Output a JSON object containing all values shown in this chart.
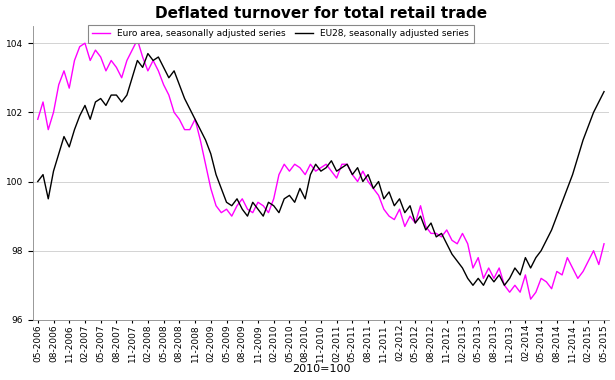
{
  "title": "Deflated turnover for total retail trade",
  "xlabel": "2010=100",
  "ylim": [
    96,
    104.5
  ],
  "yticks": [
    96,
    98,
    100,
    102,
    104
  ],
  "legend_labels": [
    "Euro area, seasonally adjusted series",
    "EU28, seasonally adjusted series"
  ],
  "legend_colors": [
    "#ff00ff",
    "#000000"
  ],
  "background_color": "#ffffff",
  "title_fontsize": 11,
  "tick_fontsize": 6.5,
  "x_labels": [
    "05-2006",
    "08-2006",
    "11-2006",
    "02-2007",
    "05-2007",
    "08-2007",
    "11-2007",
    "02-2008",
    "05-2008",
    "08-2008",
    "11-2008",
    "02-2009",
    "05-2009",
    "08-2009",
    "11-2009",
    "02-2010",
    "05-2010",
    "08-2010",
    "11-2010",
    "02-2011",
    "05-2011",
    "08-2011",
    "11-2011",
    "02-2012",
    "05-2012",
    "08-2012",
    "11-2012",
    "02-2013",
    "05-2013",
    "08-2013",
    "11-2013",
    "02-2014",
    "05-2014",
    "08-2014",
    "11-2014",
    "02-2015",
    "05-2015"
  ],
  "euro_area": [
    101.8,
    102.3,
    101.5,
    102.0,
    102.8,
    103.2,
    102.7,
    103.5,
    103.9,
    104.0,
    103.5,
    103.8,
    103.6,
    103.2,
    103.5,
    103.3,
    103.0,
    103.5,
    103.8,
    104.1,
    103.6,
    103.2,
    103.5,
    103.2,
    102.8,
    102.5,
    102.0,
    101.8,
    101.5,
    101.5,
    101.8,
    101.2,
    100.5,
    99.8,
    99.3,
    99.1,
    99.2,
    99.0,
    99.3,
    99.5,
    99.2,
    99.1,
    99.4,
    99.3,
    99.1,
    99.5,
    100.2,
    100.5,
    100.3,
    100.5,
    100.4,
    100.2,
    100.5,
    100.3,
    100.4,
    100.5,
    100.3,
    100.1,
    100.5,
    100.5,
    100.2,
    100.0,
    100.3,
    100.0,
    99.8,
    99.6,
    99.2,
    99.0,
    98.9,
    99.2,
    98.7,
    99.0,
    98.8,
    99.3,
    98.7,
    98.5,
    98.5,
    98.4,
    98.6,
    98.3,
    98.2,
    98.5,
    98.2,
    97.5,
    97.8,
    97.2,
    97.5,
    97.2,
    97.5,
    97.0,
    96.8,
    97.0,
    96.8,
    97.3,
    96.6,
    96.8,
    97.2,
    97.1,
    96.9,
    97.4,
    97.3,
    97.8,
    97.5,
    97.2,
    97.4,
    97.7,
    98.0,
    97.6,
    98.2
  ],
  "eu28": [
    100.0,
    100.2,
    99.5,
    100.3,
    100.8,
    101.3,
    101.0,
    101.5,
    101.9,
    102.2,
    101.8,
    102.3,
    102.4,
    102.2,
    102.5,
    102.5,
    102.3,
    102.5,
    103.0,
    103.5,
    103.3,
    103.7,
    103.5,
    103.6,
    103.3,
    103.0,
    103.2,
    102.8,
    102.4,
    102.1,
    101.8,
    101.5,
    101.2,
    100.8,
    100.2,
    99.8,
    99.4,
    99.3,
    99.5,
    99.2,
    99.0,
    99.4,
    99.2,
    99.0,
    99.4,
    99.3,
    99.1,
    99.5,
    99.6,
    99.4,
    99.8,
    99.5,
    100.2,
    100.5,
    100.3,
    100.4,
    100.6,
    100.3,
    100.4,
    100.5,
    100.2,
    100.4,
    100.0,
    100.2,
    99.8,
    100.0,
    99.5,
    99.7,
    99.3,
    99.5,
    99.1,
    99.3,
    98.8,
    99.0,
    98.6,
    98.8,
    98.4,
    98.5,
    98.2,
    97.9,
    97.7,
    97.5,
    97.2,
    97.0,
    97.2,
    97.0,
    97.3,
    97.1,
    97.3,
    97.0,
    97.2,
    97.5,
    97.3,
    97.8,
    97.5,
    97.8,
    98.0,
    98.3,
    98.6,
    99.0,
    99.4,
    99.8,
    100.2,
    100.7,
    101.2,
    101.6,
    102.0,
    102.3,
    102.6
  ]
}
